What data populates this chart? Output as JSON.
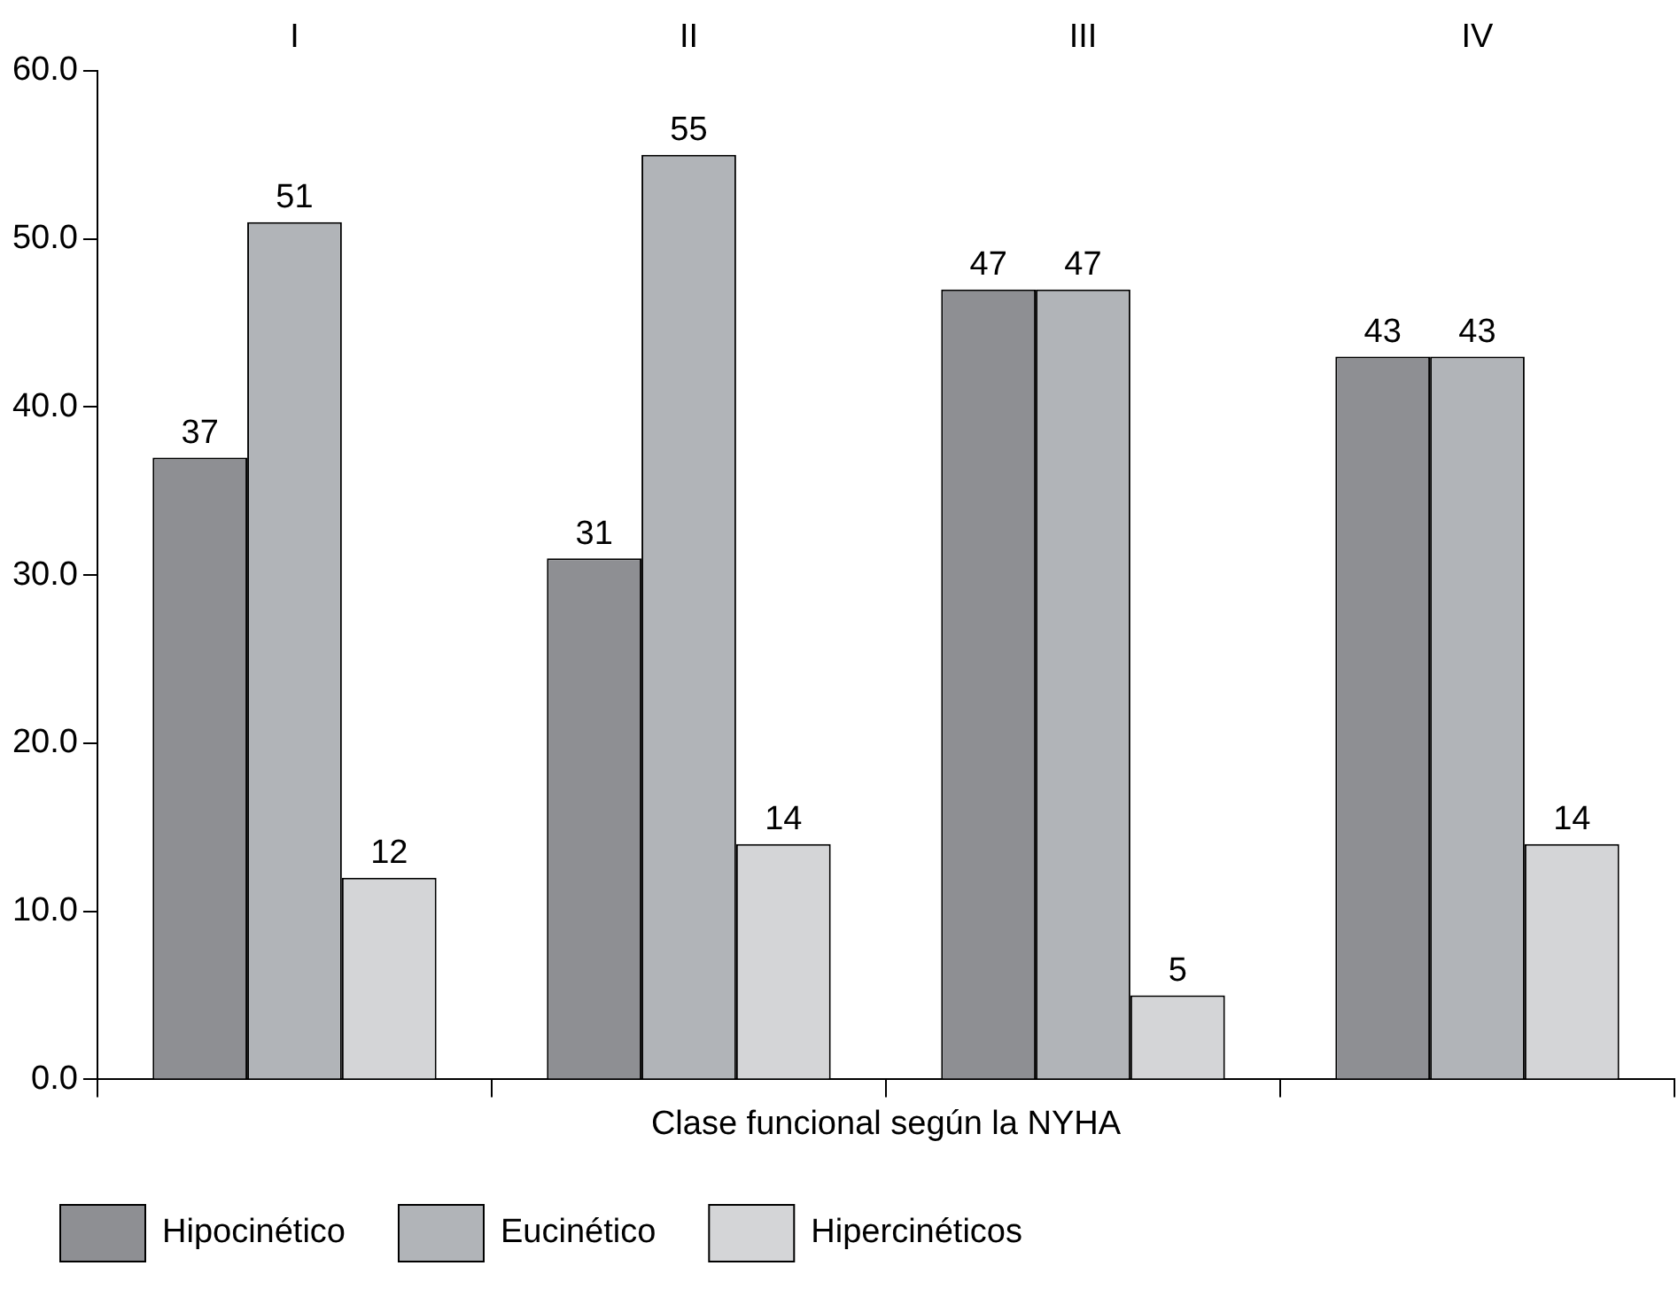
{
  "chart_data": {
    "type": "bar",
    "xlabel": "Clase funcional según la NYHA",
    "categories": [
      "I",
      "II",
      "III",
      "IV"
    ],
    "series": [
      {
        "name": "Hipocinético",
        "color": "#8e8f93",
        "values": [
          37,
          31,
          47,
          43
        ]
      },
      {
        "name": "Eucinético",
        "color": "#b1b4b8",
        "values": [
          51,
          55,
          47,
          43
        ]
      },
      {
        "name": "Hipercinéticos",
        "color": "#d4d5d7",
        "values": [
          12,
          14,
          5,
          14
        ]
      }
    ],
    "ylim": [
      0,
      60
    ],
    "yticks": [
      {
        "value": 0,
        "label": "0.0"
      },
      {
        "value": 10,
        "label": "10.0"
      },
      {
        "value": 20,
        "label": "20.0"
      },
      {
        "value": 30,
        "label": "30.0"
      },
      {
        "value": 40,
        "label": "40.0"
      },
      {
        "value": 50,
        "label": "50.0"
      },
      {
        "value": 60,
        "label": "60.0"
      }
    ],
    "grid": false,
    "legend": "bottom",
    "data_labels": true
  }
}
